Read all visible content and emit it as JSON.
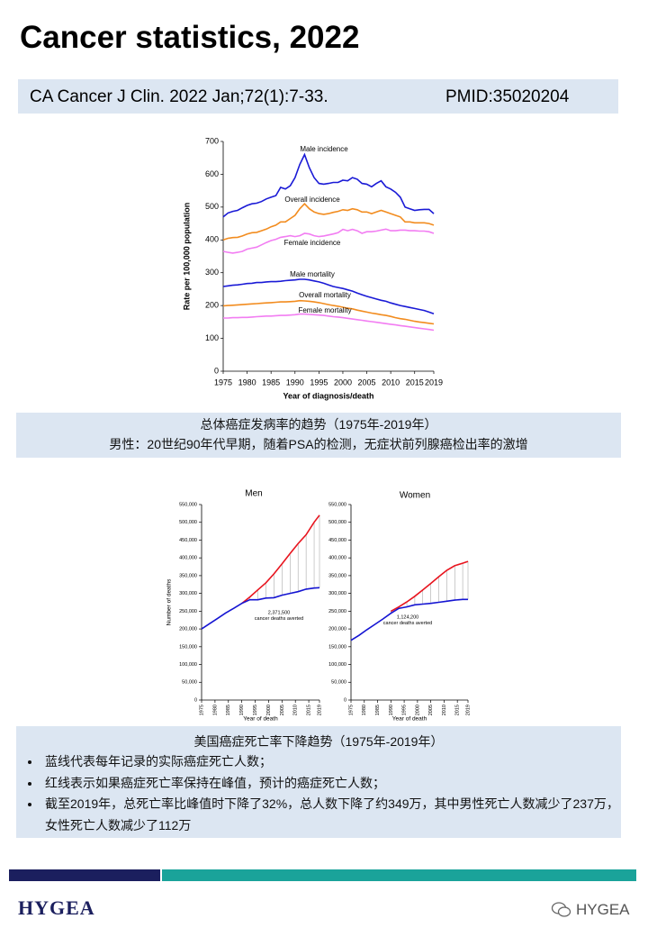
{
  "title": "Cancer statistics, 2022",
  "citation": {
    "reference": "CA Cancer J Clin. 2022 Jan;72(1):7-33.",
    "pmid": "PMID:35020204"
  },
  "chart_data": [
    {
      "type": "line",
      "xlabel": "Year of diagnosis/death",
      "ylabel": "Rate per 100,000 population",
      "x": [
        1975,
        1976,
        1977,
        1978,
        1979,
        1980,
        1981,
        1982,
        1983,
        1984,
        1985,
        1986,
        1987,
        1988,
        1989,
        1990,
        1991,
        1992,
        1993,
        1994,
        1995,
        1996,
        1997,
        1998,
        1999,
        2000,
        2001,
        2002,
        2003,
        2004,
        2005,
        2006,
        2007,
        2008,
        2009,
        2010,
        2011,
        2012,
        2013,
        2014,
        2015,
        2016,
        2017,
        2018,
        2019
      ],
      "xlim": [
        1975,
        2019
      ],
      "xticks": [
        1975,
        1980,
        1985,
        1990,
        1995,
        2000,
        2005,
        2010,
        2015,
        2019
      ],
      "ylim": [
        0,
        700
      ],
      "yticks": [
        0,
        100,
        200,
        300,
        400,
        500,
        600,
        700
      ],
      "series": [
        {
          "name": "Male incidence",
          "color": "#1a1ad6",
          "values": [
            470,
            482,
            487,
            490,
            498,
            505,
            510,
            512,
            517,
            525,
            530,
            535,
            560,
            555,
            565,
            590,
            630,
            660,
            620,
            590,
            572,
            570,
            572,
            575,
            575,
            582,
            580,
            590,
            585,
            572,
            570,
            562,
            572,
            580,
            562,
            555,
            545,
            530,
            500,
            495,
            490,
            492,
            493,
            493,
            480
          ]
        },
        {
          "name": "Overall incidence",
          "color": "#f28c1f",
          "values": [
            400,
            405,
            407,
            408,
            412,
            418,
            422,
            423,
            428,
            433,
            440,
            445,
            455,
            455,
            465,
            475,
            495,
            510,
            495,
            485,
            480,
            478,
            480,
            484,
            487,
            492,
            490,
            495,
            492,
            485,
            485,
            480,
            485,
            490,
            485,
            480,
            475,
            470,
            455,
            455,
            452,
            452,
            452,
            450,
            445
          ]
        },
        {
          "name": "Female incidence",
          "color": "#f27df2",
          "values": [
            365,
            362,
            360,
            362,
            365,
            372,
            375,
            378,
            385,
            392,
            398,
            402,
            408,
            410,
            413,
            410,
            413,
            420,
            418,
            413,
            410,
            412,
            415,
            418,
            422,
            432,
            428,
            432,
            428,
            420,
            425,
            425,
            427,
            430,
            433,
            428,
            428,
            430,
            430,
            428,
            428,
            427,
            427,
            425,
            420
          ]
        },
        {
          "name": "Male mortality",
          "color": "#1a1ad6",
          "values": [
            258,
            260,
            262,
            263,
            265,
            267,
            268,
            270,
            270,
            272,
            273,
            273,
            274,
            276,
            277,
            278,
            280,
            280,
            278,
            275,
            272,
            268,
            263,
            258,
            255,
            252,
            248,
            244,
            238,
            233,
            228,
            224,
            220,
            216,
            213,
            208,
            204,
            200,
            197,
            194,
            191,
            188,
            185,
            180,
            175
          ]
        },
        {
          "name": "Overall  mortality",
          "color": "#f28c1f",
          "values": [
            199,
            200,
            201,
            202,
            203,
            204,
            205,
            206,
            207,
            208,
            209,
            210,
            211,
            211,
            212,
            213,
            215,
            214,
            213,
            211,
            209,
            206,
            203,
            200,
            198,
            195,
            192,
            190,
            186,
            183,
            180,
            177,
            175,
            172,
            170,
            167,
            163,
            160,
            158,
            155,
            152,
            150,
            148,
            146,
            144
          ]
        },
        {
          "name": "Female mortality",
          "color": "#f27df2",
          "values": [
            162,
            162,
            163,
            163,
            164,
            164,
            165,
            166,
            167,
            168,
            168,
            169,
            170,
            170,
            171,
            172,
            174,
            174,
            173,
            172,
            171,
            170,
            168,
            166,
            165,
            163,
            161,
            159,
            157,
            155,
            153,
            151,
            149,
            147,
            145,
            143,
            141,
            139,
            137,
            135,
            133,
            131,
            129,
            127,
            125
          ]
        }
      ]
    },
    {
      "type": "line",
      "title": "Men",
      "xlabel": "Year of death",
      "ylabel": "Number of deaths",
      "hatch": true,
      "annotation": [
        "2,371,500",
        "cancer deaths averted"
      ],
      "x": [
        1975,
        1978,
        1981,
        1984,
        1987,
        1990,
        1993,
        1996,
        1999,
        2002,
        2005,
        2008,
        2011,
        2014,
        2017,
        2019
      ],
      "xlim": [
        1975,
        2019
      ],
      "xticks": [
        1975,
        1980,
        1985,
        1990,
        1995,
        2000,
        2005,
        2010,
        2015,
        2019
      ],
      "ylim": [
        0,
        550000
      ],
      "yticks": [
        0,
        {
          "value": 50000,
          "label": "50,000"
        },
        {
          "value": 100000,
          "label": "100,000"
        },
        {
          "value": 150000,
          "label": "150,000"
        },
        {
          "value": 200000,
          "label": "200,000"
        },
        {
          "value": 250000,
          "label": "250,000"
        },
        {
          "value": 300000,
          "label": "300,000"
        },
        {
          "value": 350000,
          "label": "350,000"
        },
        {
          "value": 400000,
          "label": "400,000"
        },
        {
          "value": 450000,
          "label": "450,000"
        },
        {
          "value": 500000,
          "label": "500,000"
        },
        {
          "value": 550000,
          "label": "550,000"
        }
      ],
      "series": [
        {
          "color": "#e8141e",
          "values": [
            null,
            null,
            null,
            null,
            null,
            272000,
            290000,
            310000,
            330000,
            355000,
            383000,
            412000,
            440000,
            465000,
            500000,
            520000
          ]
        },
        {
          "color": "#1414d2",
          "values": [
            200000,
            215000,
            230000,
            245000,
            258000,
            272000,
            282000,
            282000,
            287000,
            288000,
            295000,
            300000,
            305000,
            312000,
            315000,
            316000
          ]
        }
      ]
    },
    {
      "type": "line",
      "title": "Women",
      "xlabel": "Year of death",
      "hatch": true,
      "annotation": [
        "1,124,200",
        "cancer deaths averted"
      ],
      "x": [
        1975,
        1978,
        1981,
        1984,
        1987,
        1990,
        1993,
        1996,
        1999,
        2002,
        2005,
        2008,
        2011,
        2014,
        2017,
        2019
      ],
      "xlim": [
        1975,
        2019
      ],
      "xticks": [
        1975,
        1980,
        1985,
        1990,
        1995,
        2000,
        2005,
        2010,
        2015,
        2019
      ],
      "ylim": [
        0,
        550000
      ],
      "yticks": [
        0,
        {
          "value": 50000,
          "label": "50,000"
        },
        {
          "value": 100000,
          "label": "100,000"
        },
        {
          "value": 150000,
          "label": "150,000"
        },
        {
          "value": 200000,
          "label": "200,000"
        },
        {
          "value": 250000,
          "label": "250,000"
        },
        {
          "value": 300000,
          "label": "300,000"
        },
        {
          "value": 350000,
          "label": "350,000"
        },
        {
          "value": 400000,
          "label": "400,000"
        },
        {
          "value": 450000,
          "label": "450,000"
        },
        {
          "value": 500000,
          "label": "500,000"
        },
        {
          "value": 550000,
          "label": "550,000"
        }
      ],
      "series": [
        {
          "color": "#e8141e",
          "values": [
            null,
            null,
            null,
            null,
            null,
            250000,
            262000,
            276000,
            292000,
            310000,
            328000,
            347000,
            365000,
            378000,
            385000,
            390000
          ]
        },
        {
          "color": "#1414d2",
          "values": [
            168000,
            182000,
            198000,
            213000,
            228000,
            244000,
            258000,
            262000,
            268000,
            270000,
            272000,
            275000,
            278000,
            281000,
            283000,
            283000
          ]
        }
      ]
    }
  ],
  "caption1": {
    "lines": [
      "总体癌症发病率的趋势（1975年-2019年）",
      "男性：20世纪90年代早期，随着PSA的检测，无症状前列腺癌检出率的激增"
    ]
  },
  "caption2": {
    "heading": "美国癌症死亡率下降趋势（1975年-2019年）",
    "bullets": [
      "蓝线代表每年记录的实际癌症死亡人数；",
      "红线表示如果癌症死亡率保持在峰值，预计的癌症死亡人数；",
      "截至2019年，总死亡率比峰值时下降了32%，总人数下降了约349万，其中男性死亡人数减少了237万，女性死亡人数减少了112万"
    ]
  },
  "footer": {
    "logo": "HYGEA",
    "account": "HYGEA"
  }
}
